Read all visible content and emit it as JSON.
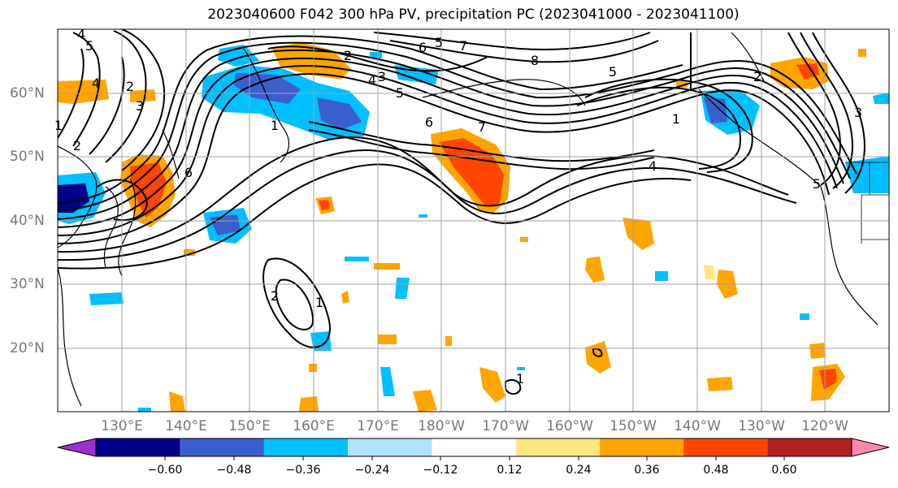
{
  "title": "2023040600 F042 300 hPa PV, precipitation PC (2023041000 - 2023041100)",
  "map": {
    "lon_ticks": [
      "130°E",
      "140°E",
      "150°E",
      "160°E",
      "170°E",
      "180°W",
      "170°W",
      "160°W",
      "150°W",
      "140°W",
      "130°W",
      "120°W"
    ],
    "lat_ticks": [
      "60°N",
      "50°N",
      "40°N",
      "30°N",
      "20°N"
    ],
    "pv_contour_labels": [
      "4",
      "5",
      "4",
      "2",
      "3",
      "2",
      "1",
      "6",
      "5",
      "2",
      "3",
      "4",
      "5",
      "1",
      "6",
      "7",
      "8",
      "5",
      "7",
      "6",
      "4",
      "1",
      "2",
      "3",
      "5",
      "2",
      "1",
      "1"
    ]
  },
  "colorbar": {
    "ticks": [
      "−0.60",
      "−0.48",
      "−0.36",
      "−0.24",
      "−0.12",
      "0.12",
      "0.24",
      "0.36",
      "0.48",
      "0.60"
    ],
    "colors": [
      "#9932cc",
      "#00008b",
      "#3a5fcd",
      "#00bfff",
      "#b0e2ff",
      "#ffffff",
      "#ffe680",
      "#ffa500",
      "#ff4500",
      "#b22222",
      "#ff88aa"
    ]
  },
  "colors": {
    "contour": "#000000",
    "grid": "#a0a0a0",
    "axis_label": "#777777"
  }
}
